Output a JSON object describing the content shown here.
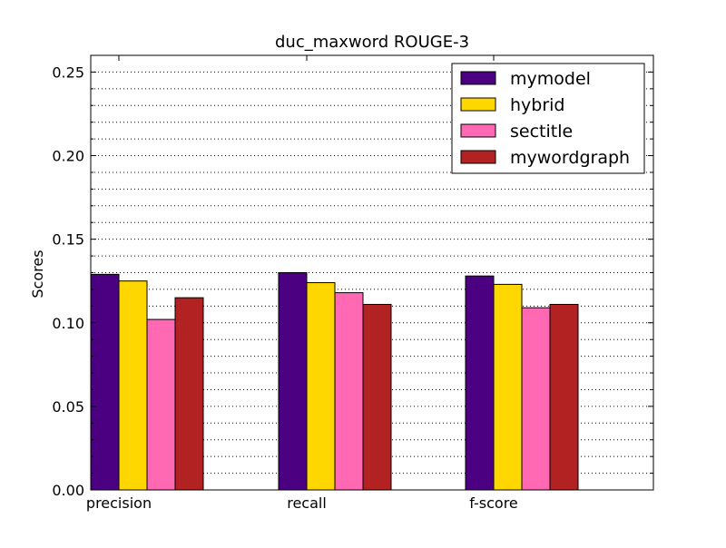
{
  "chart_data": {
    "type": "bar",
    "title": "duc_maxword ROUGE-3",
    "xlabel": "",
    "ylabel": "Scores",
    "ylim": [
      0,
      0.26
    ],
    "y_ticks": [
      "0.00",
      "0.05",
      "0.10",
      "0.15",
      "0.20",
      "0.25"
    ],
    "grid": "horizontal dotted, major and minor",
    "legend_position": "top-right",
    "categories": [
      "precision",
      "recall",
      "f-score"
    ],
    "series": [
      {
        "name": "mymodel",
        "color": "#4b0082",
        "values": [
          0.129,
          0.13,
          0.128
        ]
      },
      {
        "name": "hybrid",
        "color": "#ffd700",
        "values": [
          0.125,
          0.124,
          0.123
        ]
      },
      {
        "name": "sectitle",
        "color": "#ff69b4",
        "values": [
          0.102,
          0.118,
          0.109
        ]
      },
      {
        "name": "mywordgraph",
        "color": "#b22222",
        "values": [
          0.115,
          0.111,
          0.111
        ]
      }
    ]
  }
}
